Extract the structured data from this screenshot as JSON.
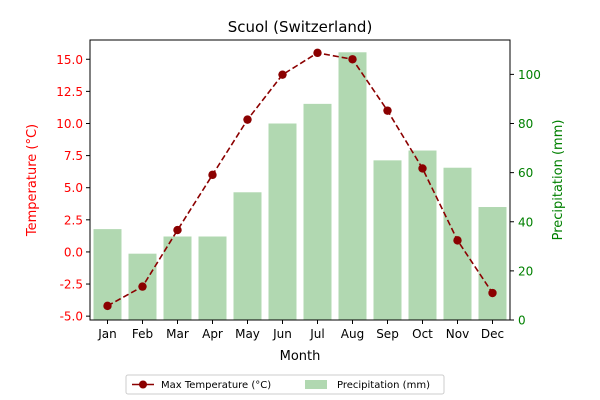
{
  "chart_data": {
    "type": "bar+line",
    "title": "Scuol (Switzerland)",
    "xlabel": "Month",
    "categories": [
      "Jan",
      "Feb",
      "Mar",
      "Apr",
      "May",
      "Jun",
      "Jul",
      "Aug",
      "Sep",
      "Oct",
      "Nov",
      "Dec"
    ],
    "series": [
      {
        "name": "Max Temperature (°C)",
        "type": "line",
        "axis": "left",
        "color": "#8b0000",
        "values": [
          -4.2,
          -2.7,
          1.7,
          6.0,
          10.3,
          13.8,
          15.5,
          15.0,
          11.0,
          6.5,
          0.9,
          -3.2
        ]
      },
      {
        "name": "Precipitation (mm)",
        "type": "bar",
        "axis": "right",
        "color": "#b1d8b1",
        "values": [
          37,
          27,
          34,
          34,
          52,
          80,
          88,
          109,
          65,
          69,
          62,
          46
        ]
      }
    ],
    "y_left": {
      "label": "Temperature (°C)",
      "color": "#ff0000",
      "lim": [
        -5.3,
        16.5
      ],
      "ticks": [
        "-5.0",
        "-2.5",
        "0.0",
        "2.5",
        "5.0",
        "7.5",
        "10.0",
        "12.5",
        "15.0"
      ]
    },
    "y_right": {
      "label": "Precipitation (mm)",
      "color": "#008000",
      "lim": [
        0,
        114
      ],
      "ticks": [
        "0",
        "20",
        "40",
        "60",
        "80",
        "100"
      ]
    },
    "grid": false,
    "legend_placement": "bottom-center"
  }
}
